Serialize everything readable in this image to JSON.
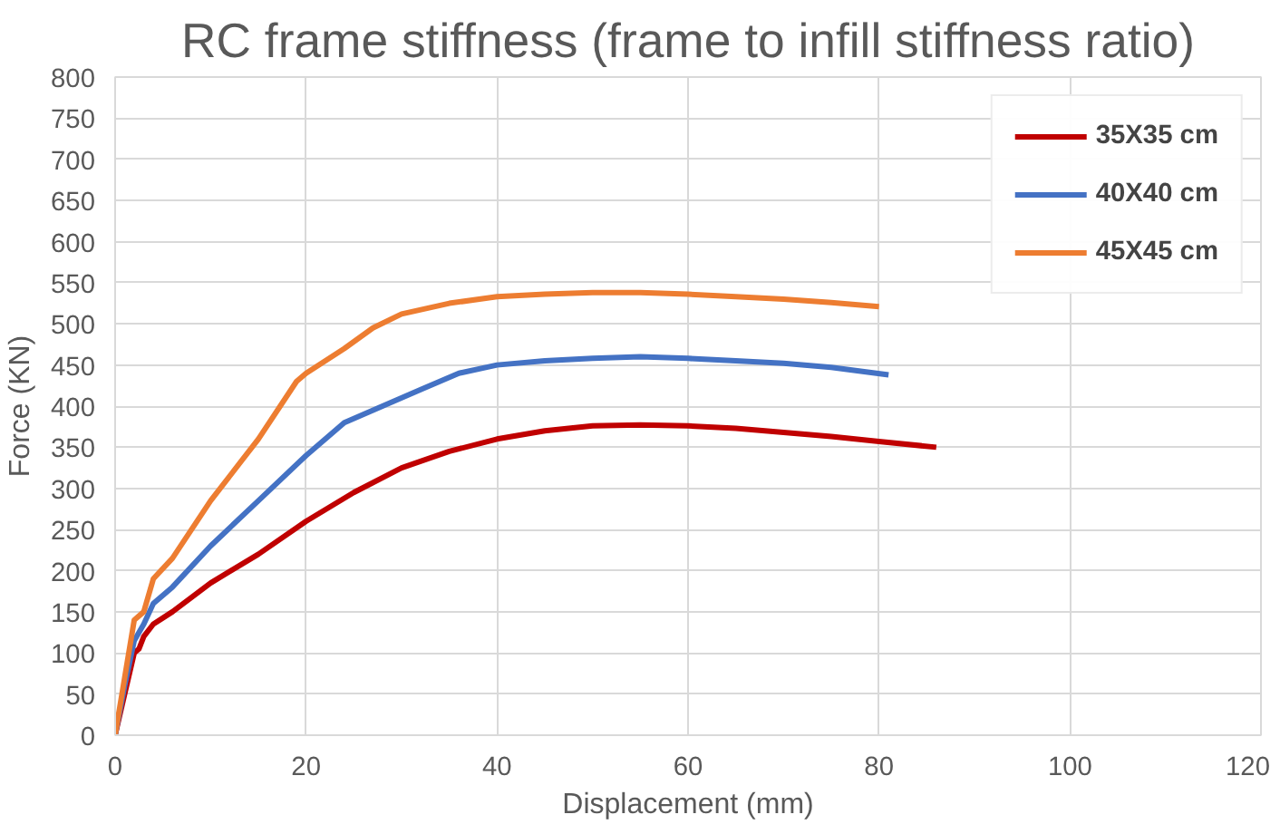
{
  "chart_data": {
    "type": "line",
    "title": "RC frame stiffness (frame to infill stiffness ratio)",
    "xlabel": "Displacement (mm)",
    "ylabel": "Force (KN)",
    "xlim": [
      0,
      120
    ],
    "ylim": [
      0,
      800
    ],
    "xticks": [
      0,
      20,
      40,
      60,
      80,
      100,
      120
    ],
    "yticks": [
      0,
      50,
      100,
      150,
      200,
      250,
      300,
      350,
      400,
      450,
      500,
      550,
      600,
      650,
      700,
      750,
      800
    ],
    "grid": true,
    "legend": "top right",
    "marker": "none",
    "line_style": "solid",
    "series": [
      {
        "name": "35X35 cm",
        "color": "#c00000",
        "x": [
          0,
          1,
          2,
          2.5,
          3,
          4,
          6,
          10,
          15,
          20,
          25,
          30,
          35,
          40,
          45,
          50,
          55,
          60,
          65,
          70,
          75,
          80,
          86
        ],
        "values": [
          0,
          50,
          100,
          105,
          120,
          135,
          150,
          185,
          220,
          260,
          295,
          325,
          345,
          360,
          370,
          376,
          377,
          376,
          373,
          368,
          363,
          357,
          350
        ]
      },
      {
        "name": "40X40 cm",
        "color": "#4472c4",
        "x": [
          0,
          1,
          2,
          3,
          4,
          6,
          10,
          15,
          20,
          24,
          28,
          32,
          36,
          40,
          45,
          50,
          55,
          60,
          65,
          70,
          75,
          81
        ],
        "values": [
          0,
          60,
          115,
          135,
          160,
          180,
          230,
          285,
          340,
          380,
          400,
          420,
          440,
          450,
          455,
          458,
          460,
          458,
          455,
          452,
          447,
          438
        ]
      },
      {
        "name": "45X45 cm",
        "color": "#ed7d31",
        "x": [
          0,
          1,
          2,
          3,
          4,
          6,
          10,
          15,
          19,
          20,
          24,
          27,
          30,
          35,
          40,
          45,
          50,
          55,
          60,
          65,
          70,
          75,
          80
        ],
        "values": [
          0,
          70,
          140,
          150,
          190,
          215,
          285,
          360,
          430,
          440,
          470,
          495,
          512,
          525,
          533,
          536,
          538,
          538,
          536,
          533,
          530,
          526,
          521
        ]
      }
    ]
  }
}
